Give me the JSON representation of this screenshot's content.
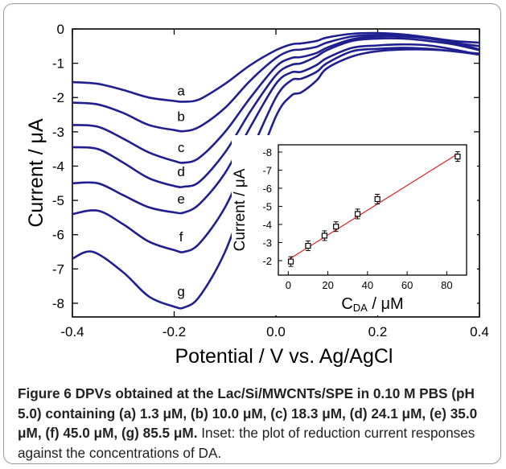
{
  "figure": {
    "caption_label": "Figure 6",
    "caption_bold": "DPVs obtained at the Lac/Si/MWCNTs/SPE in 0.10 M PBS (pH 5.0) containing (a) 1.3 μM, (b) 10.0 μM, (c) 18.3 μM, (d) 24.1 μM, (e) 35.0 μM, (f) 45.0 μM, (g) 85.5 μM.",
    "caption_text": "Inset: the plot of reduction current responses against the concentrations of DA."
  },
  "chart_data": [
    {
      "type": "line",
      "xlabel": "Potential / V vs. Ag/AgCl",
      "ylabel": "Current / μA",
      "xlim": [
        -0.4,
        0.4
      ],
      "ylim": [
        -8.4,
        0
      ],
      "xticks": [
        "-0.4",
        "-0.2",
        "0.0",
        "0.2",
        "0.4"
      ],
      "yticks": [
        "0",
        "-1",
        "-2",
        "-3",
        "-4",
        "-5",
        "-6",
        "-7",
        "-8"
      ],
      "line_color": "#1f1f8f",
      "series": [
        {
          "name": "a",
          "x": [
            -0.4,
            -0.35,
            -0.3,
            -0.25,
            -0.2,
            -0.18,
            -0.15,
            -0.1,
            -0.05,
            0.0,
            0.03,
            0.05,
            0.08,
            0.1,
            0.15,
            0.2,
            0.25,
            0.3,
            0.35,
            0.4
          ],
          "y": [
            -1.55,
            -1.6,
            -1.78,
            -2.0,
            -2.1,
            -2.12,
            -2.05,
            -1.6,
            -1.05,
            -0.62,
            -0.45,
            -0.42,
            -0.35,
            -0.25,
            -0.14,
            -0.12,
            -0.16,
            -0.25,
            -0.35,
            -0.4
          ]
        },
        {
          "name": "b",
          "x": [
            -0.4,
            -0.35,
            -0.3,
            -0.25,
            -0.2,
            -0.18,
            -0.15,
            -0.1,
            -0.05,
            0.0,
            0.03,
            0.05,
            0.08,
            0.1,
            0.15,
            0.2,
            0.25,
            0.3,
            0.35,
            0.4
          ],
          "y": [
            -2.15,
            -2.2,
            -2.45,
            -2.8,
            -2.95,
            -2.98,
            -2.85,
            -2.3,
            -1.5,
            -0.85,
            -0.63,
            -0.6,
            -0.52,
            -0.4,
            -0.22,
            -0.18,
            -0.2,
            -0.27,
            -0.4,
            -0.5
          ]
        },
        {
          "name": "c",
          "x": [
            -0.4,
            -0.35,
            -0.3,
            -0.25,
            -0.2,
            -0.18,
            -0.15,
            -0.1,
            -0.05,
            0.0,
            0.03,
            0.05,
            0.08,
            0.1,
            0.15,
            0.2,
            0.25,
            0.3,
            0.35,
            0.4
          ],
          "y": [
            -2.8,
            -2.85,
            -3.2,
            -3.6,
            -3.85,
            -3.9,
            -3.75,
            -3.0,
            -2.0,
            -1.1,
            -0.85,
            -0.82,
            -0.7,
            -0.55,
            -0.3,
            -0.22,
            -0.22,
            -0.28,
            -0.4,
            -0.6
          ]
        },
        {
          "name": "d",
          "x": [
            -0.4,
            -0.35,
            -0.3,
            -0.25,
            -0.2,
            -0.18,
            -0.15,
            -0.1,
            -0.05,
            0.0,
            0.03,
            0.05,
            0.08,
            0.1,
            0.15,
            0.2,
            0.25,
            0.3,
            0.35,
            0.4
          ],
          "y": [
            -3.45,
            -3.5,
            -3.9,
            -4.35,
            -4.58,
            -4.6,
            -4.45,
            -3.6,
            -2.4,
            -1.35,
            -1.05,
            -1.0,
            -0.8,
            -0.62,
            -0.35,
            -0.28,
            -0.28,
            -0.35,
            -0.45,
            -0.62
          ]
        },
        {
          "name": "e",
          "x": [
            -0.4,
            -0.35,
            -0.3,
            -0.25,
            -0.2,
            -0.18,
            -0.15,
            -0.1,
            -0.05,
            0.0,
            0.03,
            0.05,
            0.08,
            0.1,
            0.15,
            0.2,
            0.25,
            0.3,
            0.35,
            0.4
          ],
          "y": [
            -4.5,
            -4.5,
            -4.85,
            -5.2,
            -5.35,
            -5.35,
            -5.1,
            -4.2,
            -2.85,
            -1.6,
            -1.27,
            -1.25,
            -1.05,
            -0.85,
            -0.55,
            -0.48,
            -0.45,
            -0.48,
            -0.6,
            -0.75
          ]
        },
        {
          "name": "f",
          "x": [
            -0.4,
            -0.35,
            -0.3,
            -0.25,
            -0.2,
            -0.18,
            -0.15,
            -0.1,
            -0.05,
            0.0,
            0.03,
            0.05,
            0.08,
            0.1,
            0.15,
            0.2,
            0.25,
            0.3,
            0.35,
            0.4
          ],
          "y": [
            -5.4,
            -5.3,
            -5.7,
            -6.2,
            -6.45,
            -6.5,
            -6.25,
            -5.2,
            -3.6,
            -2.0,
            -1.5,
            -1.45,
            -1.25,
            -1.0,
            -0.65,
            -0.58,
            -0.55,
            -0.58,
            -0.65,
            -0.72
          ]
        },
        {
          "name": "g",
          "x": [
            -0.4,
            -0.36,
            -0.3,
            -0.25,
            -0.2,
            -0.18,
            -0.15,
            -0.1,
            -0.05,
            0.0,
            0.03,
            0.05,
            0.08,
            0.1,
            0.15,
            0.2,
            0.25,
            0.3,
            0.35,
            0.4
          ],
          "y": [
            -6.7,
            -6.5,
            -7.1,
            -7.8,
            -8.1,
            -8.12,
            -7.8,
            -6.5,
            -4.5,
            -2.55,
            -1.95,
            -1.85,
            -1.5,
            -1.15,
            -0.8,
            -0.65,
            -0.6,
            -0.6,
            -0.65,
            -0.75
          ]
        }
      ],
      "curve_labels": [
        {
          "text": "a",
          "x": -0.18,
          "y": -1.8
        },
        {
          "text": "b",
          "x": -0.18,
          "y": -2.55
        },
        {
          "text": "c",
          "x": -0.18,
          "y": -3.45
        },
        {
          "text": "d",
          "x": -0.18,
          "y": -4.15
        },
        {
          "text": "e",
          "x": -0.18,
          "y": -4.95
        },
        {
          "text": "f",
          "x": -0.18,
          "y": -6.05
        },
        {
          "text": "g",
          "x": -0.18,
          "y": -7.65
        }
      ]
    },
    {
      "type": "scatter",
      "xlabel_main": "C",
      "xlabel_sub": "DA",
      "xlabel_unit": " / μM",
      "ylabel": "Current / μA",
      "xlim": [
        -5,
        90
      ],
      "ylim": [
        -1.2,
        -8.4
      ],
      "xticks": [
        "0",
        "20",
        "40",
        "60",
        "80"
      ],
      "yticks": [
        "-2",
        "-3",
        "-4",
        "-5",
        "-6",
        "-7",
        "-8"
      ],
      "fit_color": "#e02020",
      "points": [
        {
          "x": 1.3,
          "y": -1.95
        },
        {
          "x": 10.0,
          "y": -2.82
        },
        {
          "x": 18.3,
          "y": -3.38
        },
        {
          "x": 24.1,
          "y": -3.88
        },
        {
          "x": 35.0,
          "y": -4.58
        },
        {
          "x": 45.0,
          "y": -5.4
        },
        {
          "x": 85.5,
          "y": -7.75
        }
      ],
      "fit": {
        "x": [
          0,
          85.5
        ],
        "y": [
          -2.05,
          -7.9
        ]
      }
    }
  ]
}
